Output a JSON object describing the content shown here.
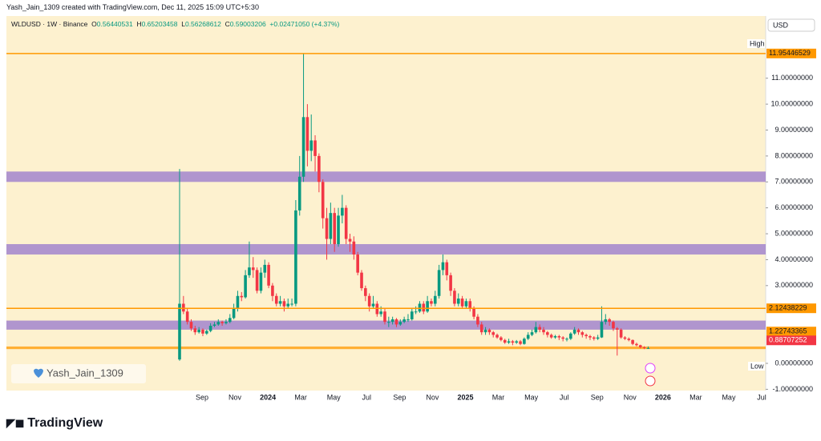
{
  "header": {
    "title": "Yash_Jain_1309 created with TradingView.com, Dec 11, 2025 15:09 UTC+5:30"
  },
  "chart_data": {
    "type": "candlestick",
    "symbol": "WLDUSD · 1W · Binance",
    "ohlc_labels": [
      "O",
      "H",
      "L",
      "C"
    ],
    "change": "+0.02471050 (+4.37%)",
    "currency": "USD",
    "up_color": "#089981",
    "down_color": "#f23645",
    "candles": [
      [
        0.15,
        7.5,
        0.1,
        2.3
      ],
      [
        2.3,
        2.6,
        1.9,
        2.0
      ],
      [
        2.0,
        2.1,
        1.5,
        1.6
      ],
      [
        1.6,
        1.7,
        1.25,
        1.35
      ],
      [
        1.35,
        1.45,
        1.1,
        1.2
      ],
      [
        1.2,
        1.4,
        1.15,
        1.3
      ],
      [
        1.3,
        1.35,
        1.05,
        1.15
      ],
      [
        1.15,
        1.3,
        1.1,
        1.25
      ],
      [
        1.25,
        1.55,
        1.2,
        1.45
      ],
      [
        1.45,
        1.6,
        1.4,
        1.5
      ],
      [
        1.5,
        1.7,
        1.45,
        1.6
      ],
      [
        1.6,
        1.65,
        1.45,
        1.55
      ],
      [
        1.55,
        1.7,
        1.5,
        1.6
      ],
      [
        1.6,
        1.9,
        1.55,
        1.75
      ],
      [
        1.75,
        2.3,
        1.7,
        2.1
      ],
      [
        2.1,
        2.8,
        2.0,
        2.6
      ],
      [
        2.6,
        2.75,
        2.4,
        2.55
      ],
      [
        2.55,
        3.6,
        2.5,
        3.4
      ],
      [
        3.4,
        4.7,
        3.3,
        3.7
      ],
      [
        3.7,
        4.1,
        3.3,
        3.6
      ],
      [
        3.6,
        3.7,
        2.7,
        2.8
      ],
      [
        2.8,
        3.7,
        2.7,
        3.5
      ],
      [
        3.5,
        4.0,
        3.3,
        3.8
      ],
      [
        3.8,
        3.9,
        2.9,
        3.0
      ],
      [
        3.0,
        3.1,
        2.4,
        2.6
      ],
      [
        2.6,
        2.7,
        2.2,
        2.3
      ],
      [
        2.3,
        2.6,
        2.2,
        2.4
      ],
      [
        2.4,
        2.5,
        2.0,
        2.2
      ],
      [
        2.2,
        2.5,
        2.1,
        2.3
      ],
      [
        2.3,
        2.5,
        2.2,
        2.3
      ],
      [
        2.3,
        6.3,
        2.2,
        5.9
      ],
      [
        5.9,
        8.0,
        5.7,
        7.2
      ],
      [
        7.2,
        11.95,
        7.0,
        9.5
      ],
      [
        9.5,
        10.0,
        7.6,
        8.2
      ],
      [
        8.2,
        9.6,
        7.8,
        8.6
      ],
      [
        8.6,
        8.8,
        7.4,
        8.0
      ],
      [
        8.0,
        8.1,
        6.6,
        7.0
      ],
      [
        7.0,
        7.1,
        5.2,
        5.6
      ],
      [
        5.6,
        6.0,
        4.0,
        4.8
      ],
      [
        4.8,
        6.2,
        4.6,
        5.8
      ],
      [
        5.8,
        6.0,
        4.3,
        4.6
      ],
      [
        4.6,
        6.0,
        4.5,
        5.7
      ],
      [
        5.7,
        6.5,
        5.4,
        6.0
      ],
      [
        6.0,
        6.1,
        4.6,
        4.8
      ],
      [
        4.8,
        5.0,
        4.3,
        4.7
      ],
      [
        4.7,
        4.9,
        4.0,
        4.2
      ],
      [
        4.2,
        4.3,
        3.4,
        3.5
      ],
      [
        3.5,
        3.6,
        2.8,
        2.9
      ],
      [
        2.9,
        3.0,
        2.4,
        2.6
      ],
      [
        2.6,
        2.7,
        2.0,
        2.2
      ],
      [
        2.2,
        2.6,
        2.1,
        2.3
      ],
      [
        2.3,
        2.4,
        1.8,
        1.9
      ],
      [
        1.9,
        2.2,
        1.8,
        2.0
      ],
      [
        2.0,
        2.1,
        1.5,
        1.6
      ],
      [
        1.6,
        1.8,
        1.4,
        1.6
      ],
      [
        1.6,
        1.8,
        1.5,
        1.7
      ],
      [
        1.7,
        1.75,
        1.4,
        1.5
      ],
      [
        1.5,
        1.7,
        1.45,
        1.6
      ],
      [
        1.6,
        1.8,
        1.55,
        1.7
      ],
      [
        1.7,
        1.9,
        1.6,
        1.7
      ],
      [
        1.7,
        2.1,
        1.65,
        2.0
      ],
      [
        2.0,
        2.2,
        1.9,
        2.0
      ],
      [
        2.0,
        2.4,
        1.95,
        2.3
      ],
      [
        2.3,
        2.4,
        1.9,
        2.0
      ],
      [
        2.0,
        2.6,
        1.95,
        2.4
      ],
      [
        2.4,
        2.5,
        2.2,
        2.3
      ],
      [
        2.3,
        2.8,
        2.2,
        2.6
      ],
      [
        2.6,
        3.8,
        2.5,
        3.6
      ],
      [
        3.6,
        4.2,
        3.4,
        3.9
      ],
      [
        3.9,
        4.0,
        3.2,
        3.4
      ],
      [
        3.4,
        3.5,
        2.6,
        2.8
      ],
      [
        2.8,
        2.9,
        2.2,
        2.3
      ],
      [
        2.3,
        2.7,
        2.2,
        2.5
      ],
      [
        2.5,
        2.6,
        2.1,
        2.2
      ],
      [
        2.2,
        2.5,
        2.1,
        2.4
      ],
      [
        2.4,
        2.5,
        2.0,
        2.1
      ],
      [
        2.1,
        2.2,
        1.7,
        1.8
      ],
      [
        1.8,
        1.9,
        1.4,
        1.5
      ],
      [
        1.5,
        1.6,
        1.1,
        1.2
      ],
      [
        1.2,
        1.4,
        1.1,
        1.3
      ],
      [
        1.3,
        1.35,
        1.1,
        1.2
      ],
      [
        1.2,
        1.25,
        1.0,
        1.1
      ],
      [
        1.1,
        1.15,
        0.95,
        1.0
      ],
      [
        1.0,
        1.05,
        0.85,
        0.9
      ],
      [
        0.9,
        0.95,
        0.75,
        0.8
      ],
      [
        0.8,
        0.95,
        0.75,
        0.85
      ],
      [
        0.85,
        0.9,
        0.7,
        0.8
      ],
      [
        0.8,
        0.9,
        0.75,
        0.85
      ],
      [
        0.85,
        0.9,
        0.7,
        0.75
      ],
      [
        0.75,
        1.0,
        0.72,
        0.95
      ],
      [
        0.95,
        1.2,
        0.9,
        1.1
      ],
      [
        1.1,
        1.3,
        1.05,
        1.2
      ],
      [
        1.2,
        1.6,
        1.15,
        1.4
      ],
      [
        1.4,
        1.5,
        1.2,
        1.3
      ],
      [
        1.3,
        1.4,
        1.1,
        1.2
      ],
      [
        1.2,
        1.25,
        1.0,
        1.1
      ],
      [
        1.1,
        1.15,
        0.95,
        1.0
      ],
      [
        1.0,
        1.1,
        0.95,
        1.05
      ],
      [
        1.05,
        1.1,
        0.9,
        1.0
      ],
      [
        1.0,
        1.05,
        0.85,
        0.95
      ],
      [
        0.95,
        1.0,
        0.85,
        0.95
      ],
      [
        0.95,
        1.2,
        0.9,
        1.15
      ],
      [
        1.15,
        1.4,
        1.1,
        1.3
      ],
      [
        1.3,
        1.35,
        1.1,
        1.2
      ],
      [
        1.2,
        1.25,
        1.0,
        1.1
      ],
      [
        1.1,
        1.15,
        0.95,
        1.05
      ],
      [
        1.05,
        1.1,
        0.9,
        1.0
      ],
      [
        1.0,
        1.05,
        0.88,
        0.95
      ],
      [
        0.95,
        1.1,
        0.9,
        1.0
      ],
      [
        1.0,
        2.2,
        0.98,
        1.6
      ],
      [
        1.6,
        1.9,
        1.5,
        1.7
      ],
      [
        1.7,
        1.75,
        1.45,
        1.6
      ],
      [
        1.6,
        1.65,
        1.25,
        1.35
      ],
      [
        1.35,
        1.4,
        0.3,
        1.3
      ],
      [
        1.3,
        1.35,
        0.95,
        1.0
      ],
      [
        1.0,
        1.05,
        0.9,
        0.95
      ],
      [
        0.95,
        1.0,
        0.85,
        0.9
      ],
      [
        0.9,
        0.92,
        0.7,
        0.75
      ],
      [
        0.75,
        0.8,
        0.66,
        0.7
      ],
      [
        0.7,
        0.72,
        0.58,
        0.62
      ],
      [
        0.62,
        0.66,
        0.55,
        0.6
      ],
      [
        0.56440531,
        0.65203458,
        0.56268612,
        0.59003206
      ]
    ],
    "ylim": [
      -1.05,
      13.4
    ],
    "yticks": [
      {
        "value": -1,
        "label": "-1.00000000"
      },
      {
        "value": 0,
        "label": "0.00000000"
      },
      {
        "value": 3,
        "label": "3.00000000"
      },
      {
        "value": 4,
        "label": "4.00000000"
      },
      {
        "value": 5,
        "label": "5.00000000"
      },
      {
        "value": 6,
        "label": "6.00000000"
      },
      {
        "value": 7,
        "label": "7.00000000"
      },
      {
        "value": 8,
        "label": "8.00000000"
      },
      {
        "value": 9,
        "label": "9.00000000"
      },
      {
        "value": 10,
        "label": "10.00000000"
      },
      {
        "value": 11,
        "label": "11.00000000"
      }
    ],
    "xtick_labels": [
      "Sep",
      "Nov",
      "2024",
      "Mar",
      "May",
      "Jul",
      "Sep",
      "Nov",
      "2025",
      "Mar",
      "May",
      "Jul",
      "Sep",
      "Nov",
      "2026",
      "Mar",
      "May",
      "Jul"
    ],
    "levels": [
      {
        "value": 11.95446529,
        "color": "#ff9800",
        "line": true
      },
      {
        "value": 2.12438229,
        "color": "#ff9800",
        "line": true
      },
      {
        "value": 1.22743365,
        "color": "#ff9800",
        "line": false
      },
      {
        "value": 0.88707252,
        "color": "#f23645",
        "line": false
      }
    ],
    "bands": [
      {
        "from": 7.0,
        "to": 7.4,
        "color": "#9575cd"
      },
      {
        "from": 4.2,
        "to": 4.6,
        "color": "#9575cd"
      },
      {
        "from": 1.3,
        "to": 1.65,
        "color": "#9575cd"
      },
      {
        "from": 0.55,
        "to": 0.65,
        "color": "#ff9800"
      }
    ],
    "high_label": "High",
    "low_label": "Low",
    "watermark": "Yash_Jain_1309"
  },
  "footer": {
    "brand": "TradingView"
  }
}
